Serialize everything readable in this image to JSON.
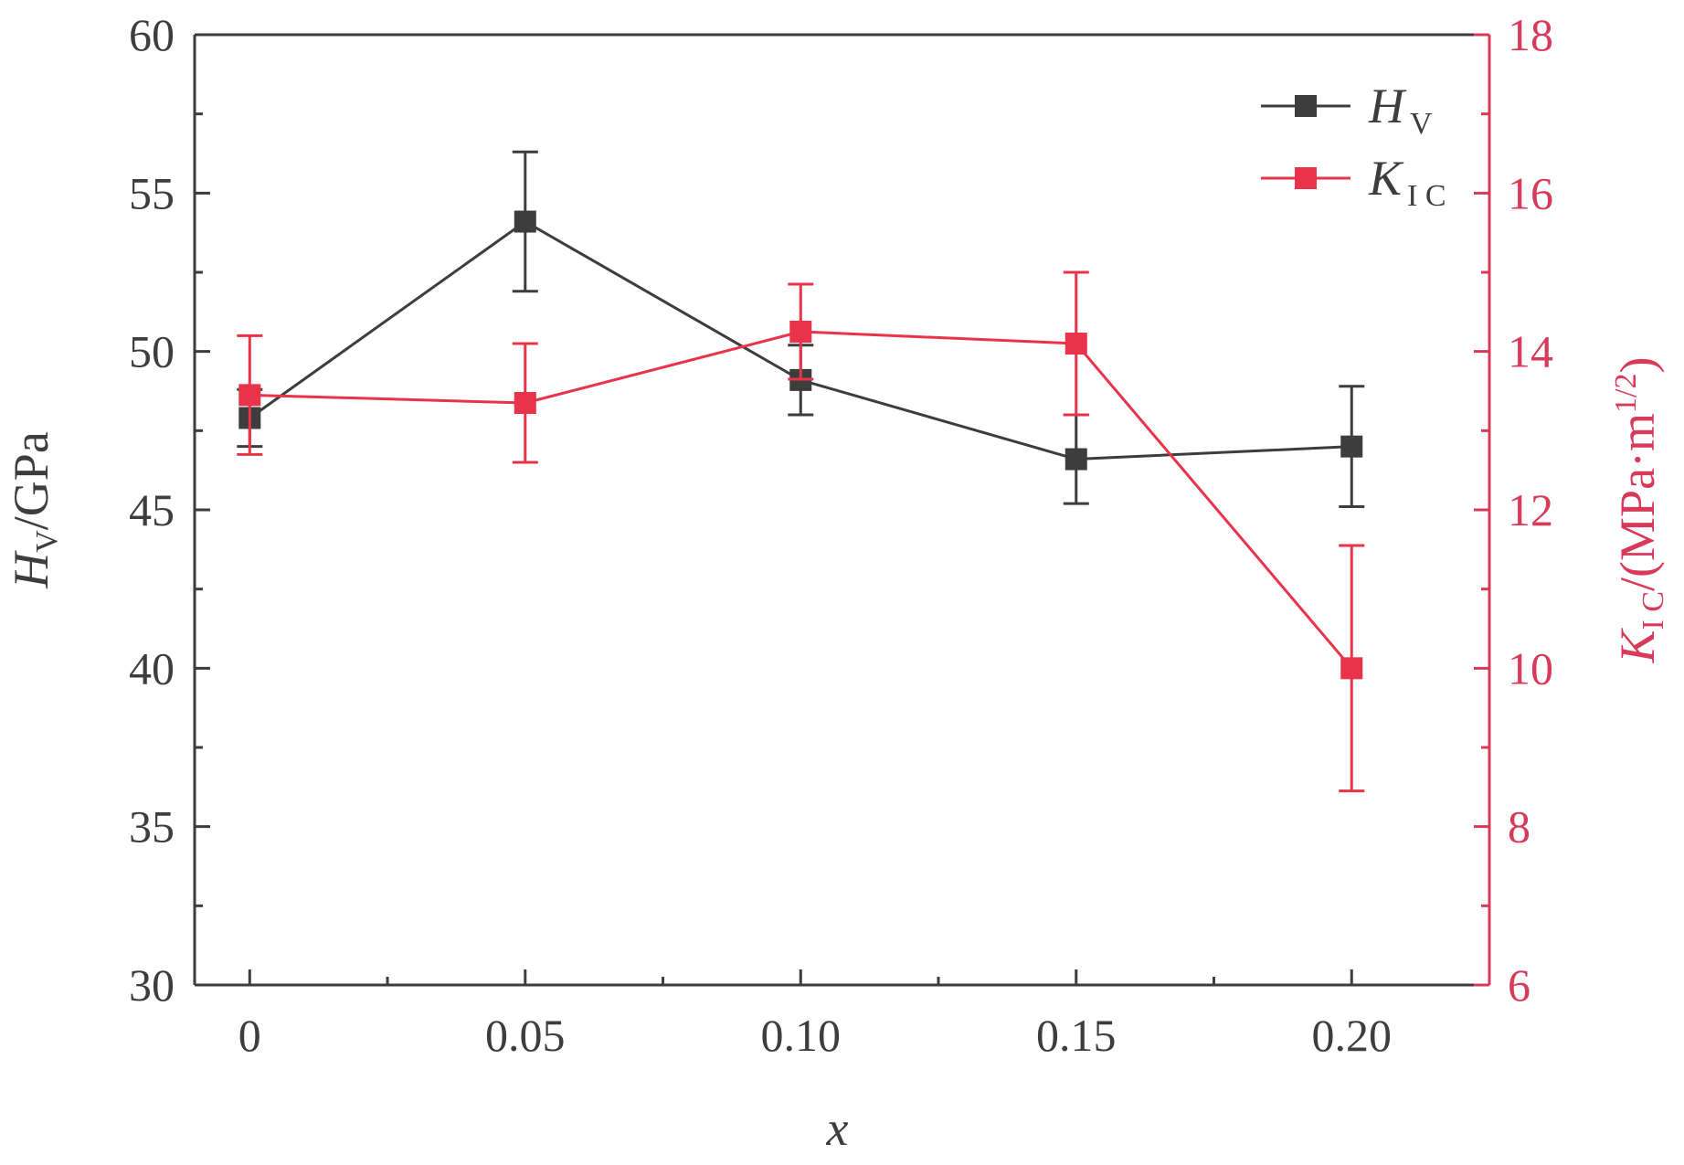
{
  "chart_data": {
    "type": "line",
    "title": "",
    "x": [
      0,
      0.05,
      0.1,
      0.15,
      0.2
    ],
    "x_tick_labels": [
      "0",
      "0.05",
      "0.10",
      "0.15",
      "0.20"
    ],
    "xlabel": "x",
    "xlim": [
      -0.01,
      0.225
    ],
    "left_axis": {
      "label_main": "H",
      "label_sub": "V",
      "label_unit": "/GPa",
      "ylim": [
        30,
        60
      ],
      "ticks": [
        30,
        35,
        40,
        45,
        50,
        55,
        60
      ]
    },
    "right_axis": {
      "label_main": "K",
      "label_sub": "I C",
      "label_unit_before": "/(MPa·m",
      "label_unit_sup": "1/2",
      "label_unit_after": ")",
      "ylim": [
        6,
        18
      ],
      "ticks": [
        6,
        8,
        10,
        12,
        14,
        16,
        18
      ]
    },
    "series": [
      {
        "name": "Hv",
        "legend_main": "H",
        "legend_sub": "V",
        "axis": "left",
        "color": "#3d3d3d",
        "values": [
          47.9,
          54.1,
          49.1,
          46.6,
          47.0
        ],
        "errors": [
          0.9,
          2.2,
          1.1,
          1.4,
          1.9
        ]
      },
      {
        "name": "KIC",
        "legend_main": "K",
        "legend_sub": "I C",
        "axis": "right",
        "color": "#e8334a",
        "values": [
          13.45,
          13.35,
          14.25,
          14.1,
          10.0
        ],
        "errors": [
          0.75,
          0.75,
          0.6,
          0.9,
          1.55
        ]
      }
    ]
  },
  "colors": {
    "left_axis": "#3d3d3d",
    "right_axis": "#d83a5a"
  }
}
